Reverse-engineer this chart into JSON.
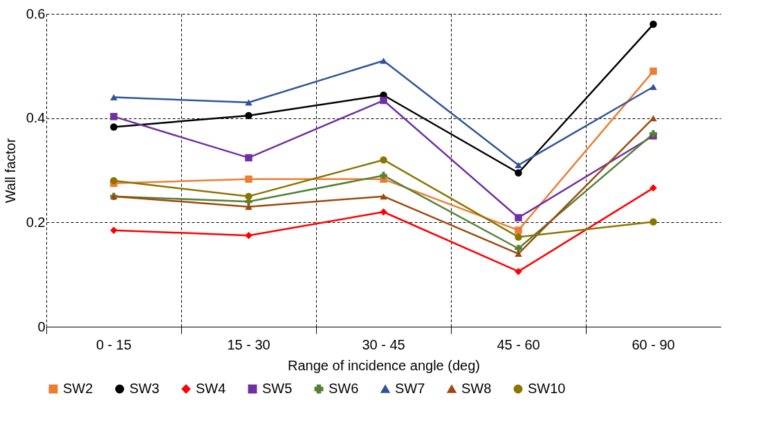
{
  "chart_data": {
    "type": "line",
    "xlabel": "Range of incidence angle (deg)",
    "ylabel": "Wall factor",
    "categories": [
      "0 - 15",
      "15 - 30",
      "30 - 45",
      "45 - 60",
      "60 - 90"
    ],
    "ylim": [
      0,
      0.6
    ],
    "yticks": [
      0,
      0.2,
      0.4,
      0.6
    ],
    "grid": true,
    "legend": "bottom",
    "line_style": "solid",
    "series": [
      {
        "name": "SW2",
        "color": "#ed7d31",
        "marker": "square",
        "values": [
          0.275,
          0.283,
          0.283,
          0.185,
          0.49
        ]
      },
      {
        "name": "SW3",
        "color": "#000000",
        "marker": "circle",
        "values": [
          0.383,
          0.405,
          0.444,
          0.295,
          0.58
        ]
      },
      {
        "name": "SW4",
        "color": "#ff0000",
        "marker": "diamond",
        "values": [
          0.185,
          0.175,
          0.22,
          0.106,
          0.266
        ]
      },
      {
        "name": "SW5",
        "color": "#7030a0",
        "marker": "square",
        "values": [
          0.403,
          0.324,
          0.434,
          0.209,
          0.366
        ]
      },
      {
        "name": "SW6",
        "color": "#548235",
        "marker": "cross",
        "values": [
          0.25,
          0.24,
          0.29,
          0.15,
          0.37
        ]
      },
      {
        "name": "SW7",
        "color": "#2f5597",
        "marker": "triangle",
        "values": [
          0.44,
          0.43,
          0.51,
          0.31,
          0.46
        ]
      },
      {
        "name": "SW8",
        "color": "#9e480e",
        "marker": "triangle",
        "values": [
          0.25,
          0.23,
          0.25,
          0.14,
          0.4
        ]
      },
      {
        "name": "SW10",
        "color": "#8b7500",
        "marker": "circle",
        "values": [
          0.28,
          0.25,
          0.32,
          0.172,
          0.201
        ]
      }
    ]
  }
}
